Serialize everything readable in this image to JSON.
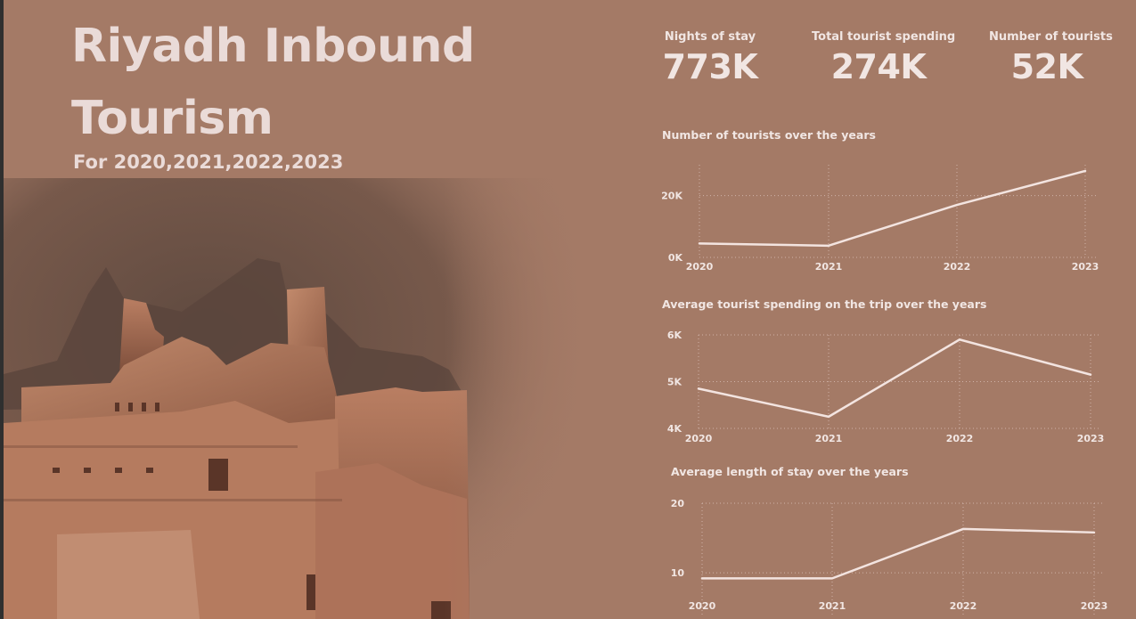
{
  "header": {
    "title_line1": "Riyadh Inbound",
    "title_line2": "Tourism",
    "subtitle": "For 2020,2021,2022,2023"
  },
  "kpis": {
    "nights": {
      "label": "Nights of stay",
      "value": "773K"
    },
    "spending": {
      "label": "Total tourist spending",
      "value": "274K"
    },
    "tourists": {
      "label": "Number of tourists",
      "value": "52K"
    }
  },
  "colors": {
    "background": "#a47a66",
    "text": "#f1e6e3",
    "line": "#f3e4e0",
    "grid": "#cfb3a8"
  },
  "chart_data": [
    {
      "type": "line",
      "title": "Number of tourists over the years",
      "x": [
        "2020",
        "2021",
        "2022",
        "2023"
      ],
      "values": [
        4500,
        3800,
        17000,
        28000
      ],
      "y_ticks": [
        {
          "value": 0,
          "label": "0K"
        },
        {
          "value": 20000,
          "label": "20K"
        }
      ],
      "ylim": [
        0,
        30000
      ],
      "grid": true
    },
    {
      "type": "line",
      "title": "Average tourist spending on the trip over the years",
      "x": [
        "2020",
        "2021",
        "2022",
        "2023"
      ],
      "values": [
        4850,
        4250,
        5900,
        5150
      ],
      "y_ticks": [
        {
          "value": 4000,
          "label": "4K"
        },
        {
          "value": 5000,
          "label": "5K"
        },
        {
          "value": 6000,
          "label": "6K"
        }
      ],
      "ylim": [
        4000,
        6000
      ],
      "grid": true
    },
    {
      "type": "line",
      "title": "Average length of stay over the years",
      "x": [
        "2020",
        "2021",
        "2022",
        "2023"
      ],
      "values": [
        9.2,
        9.2,
        16.3,
        15.8
      ],
      "y_ticks": [
        {
          "value": 10,
          "label": "10"
        },
        {
          "value": 20,
          "label": "20"
        }
      ],
      "ylim": [
        4,
        20
      ],
      "grid": true
    }
  ]
}
